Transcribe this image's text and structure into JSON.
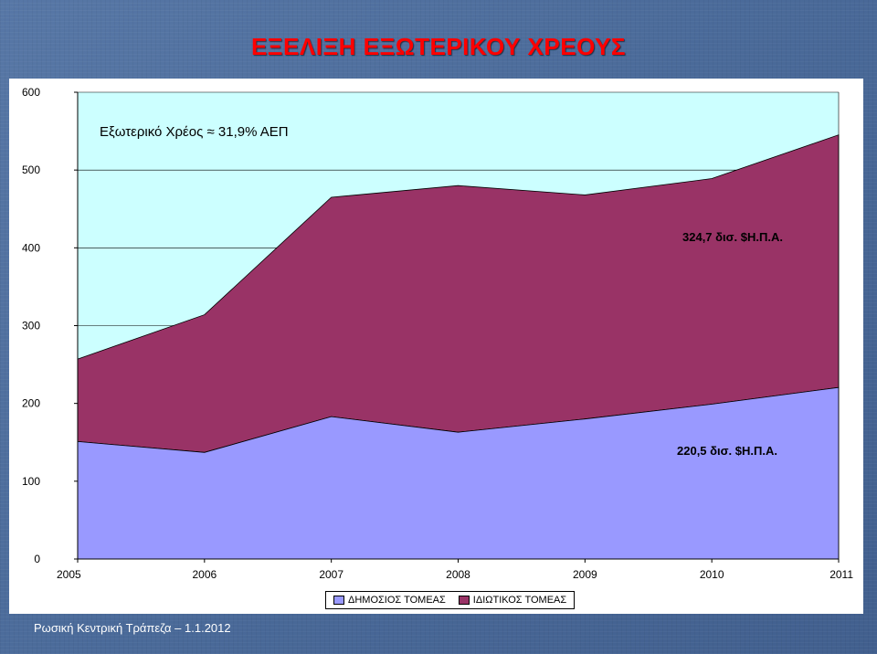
{
  "slide": {
    "title": "ΕΞΕΛΙΞΗ ΕΞΩΤΕΡΙΚΟΥ ΧΡΕΟΥΣ",
    "footer": "Ρωσική Κεντρική Τράπεζα – 1.1.2012"
  },
  "colors": {
    "title": "#ff0000",
    "plot_background": "#ccffff",
    "public_sector": "#9999ff",
    "private_sector": "#993366"
  },
  "chart_data": {
    "type": "area",
    "stacked": true,
    "subtitle": "Εξωτερικό Χρέος ≈ 31,9% ΑΕΠ",
    "x": [
      "2005",
      "2006",
      "2007",
      "2008",
      "2009",
      "2010",
      "2011"
    ],
    "ylim": [
      0,
      600
    ],
    "yticks": [
      "0",
      "100",
      "200",
      "300",
      "400",
      "500",
      "600"
    ],
    "grid": true,
    "legend_position": "bottom",
    "series": [
      {
        "name": "ΔΗΜΟΣΙΟΣ ΤΟΜΕΑΣ",
        "values": [
          151,
          137,
          183,
          163,
          180,
          199,
          220.5
        ]
      },
      {
        "name": "ΙΔΙΩΤΙΚΟΣ ΤΟΜΕΑΣ",
        "values": [
          106,
          177,
          282,
          317,
          288,
          290,
          324.7
        ]
      }
    ],
    "annotations": [
      {
        "text": "324,7 δισ. $Η.Π.Α."
      },
      {
        "text": "220,5 δισ. $Η.Π.Α."
      }
    ]
  }
}
